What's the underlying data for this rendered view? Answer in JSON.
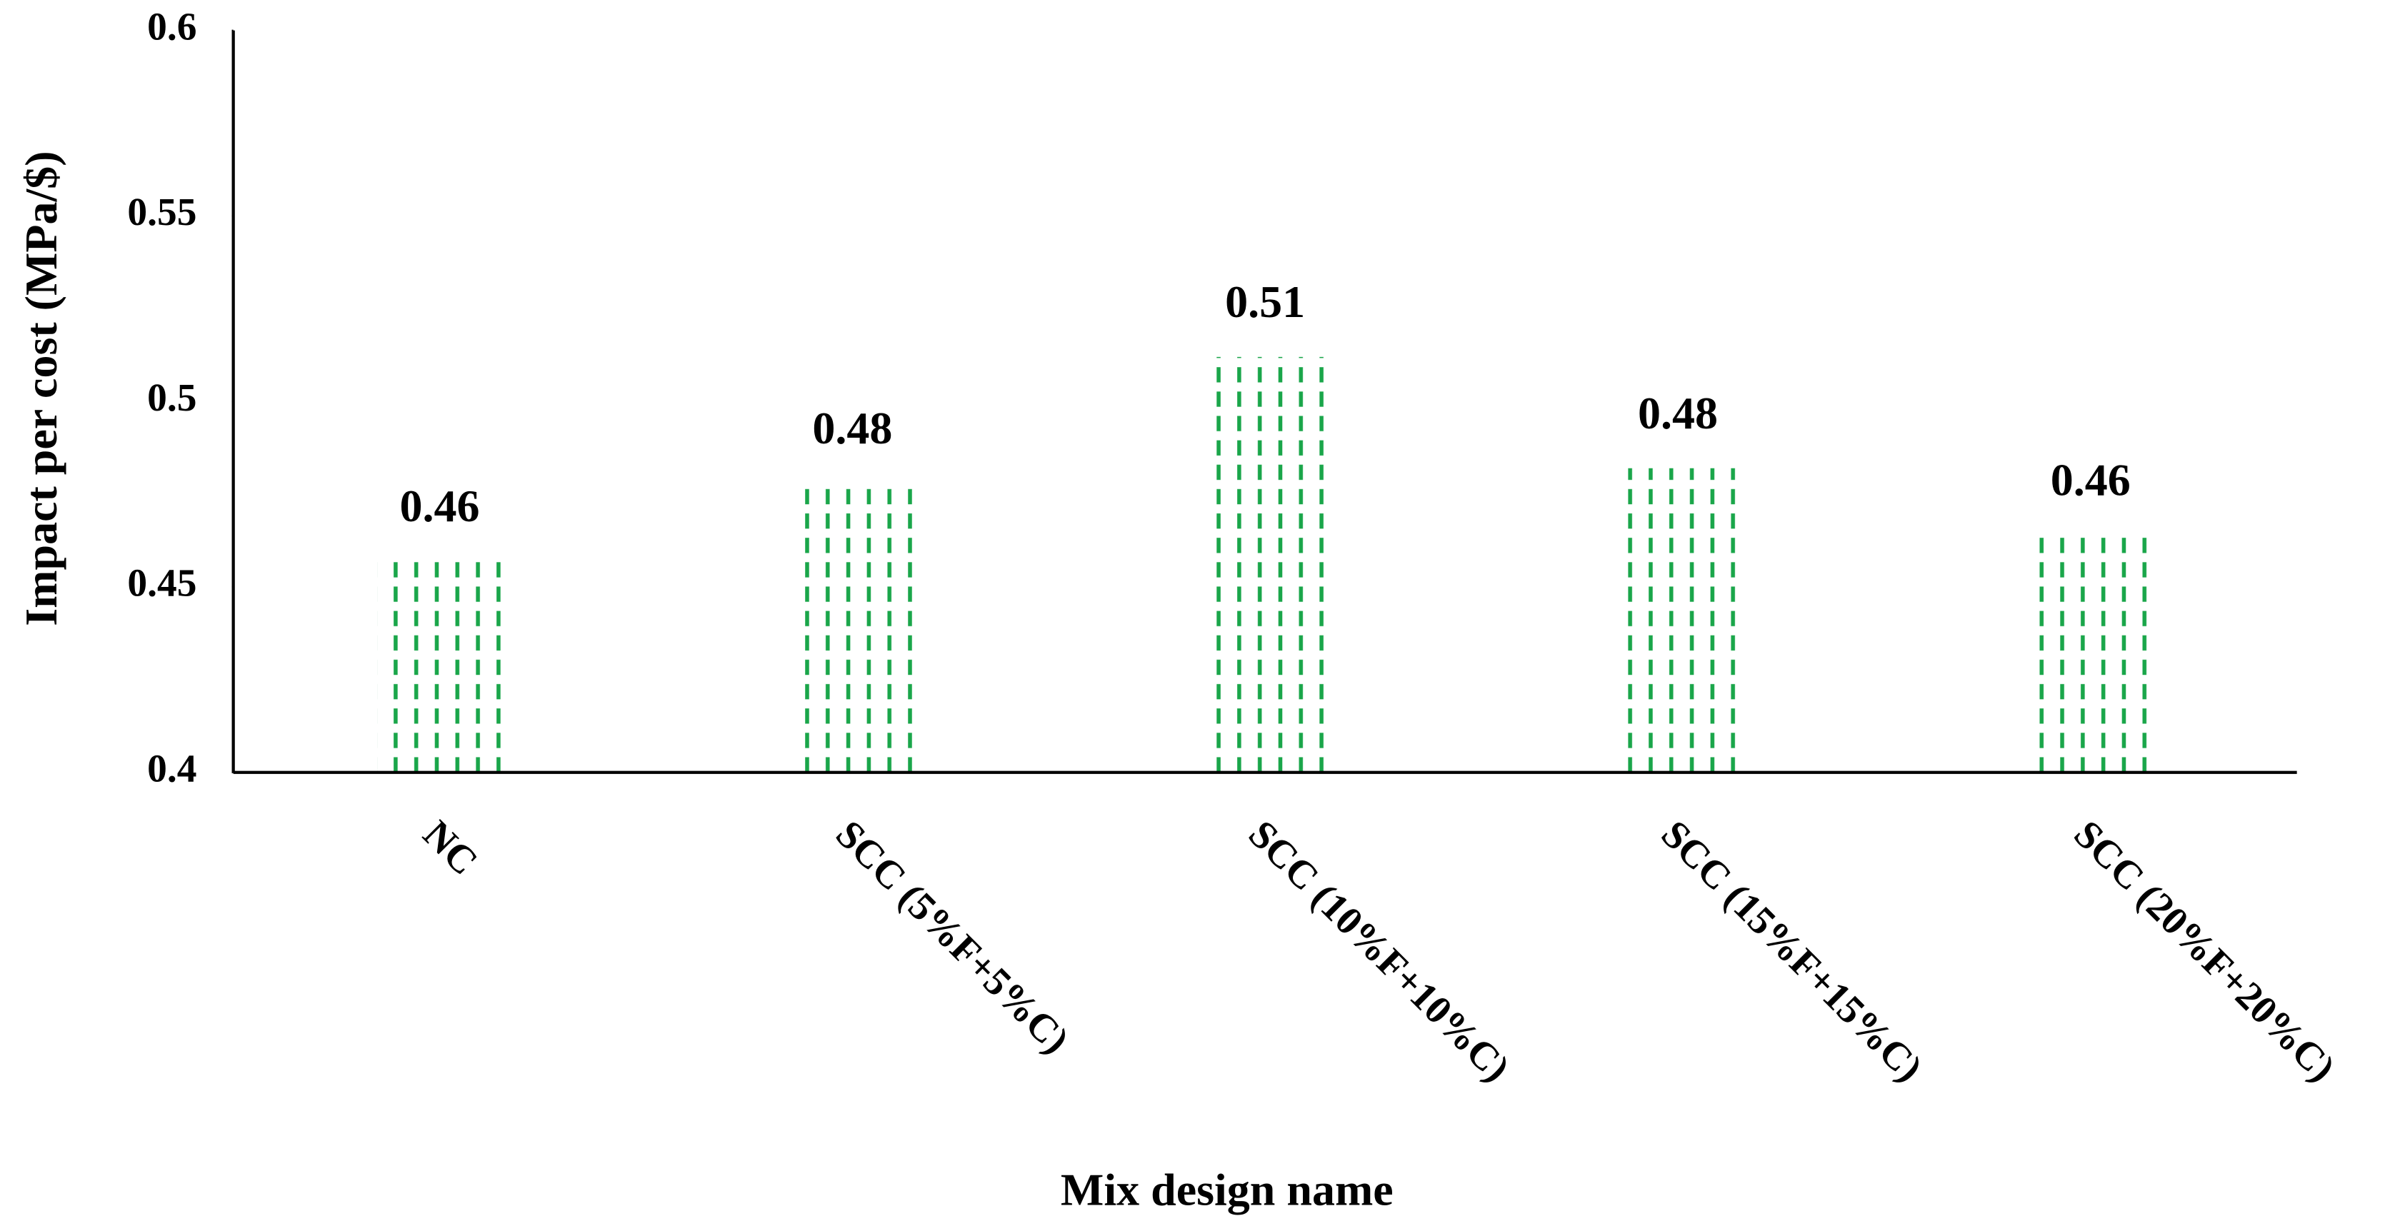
{
  "chart_data": {
    "type": "bar",
    "x_label": "Mix design name",
    "y_label": "Impact per cost (MPa/$)",
    "categories": [
      "NC",
      "SCC (5%F+5%C)",
      "SCC (10%F+10%C)",
      "SCC (15%F+15%C)",
      "SCC (20%F+20%C)"
    ],
    "values": [
      0.457,
      0.478,
      0.512,
      0.482,
      0.464
    ],
    "value_labels": [
      "0.46",
      "0.48",
      "0.51",
      "0.48",
      "0.46"
    ],
    "color": "#1aa64a",
    "ylim": [
      0.4,
      0.6
    ],
    "yticks": [
      0.4,
      0.45,
      0.5,
      0.55,
      0.6
    ],
    "grid": false
  }
}
